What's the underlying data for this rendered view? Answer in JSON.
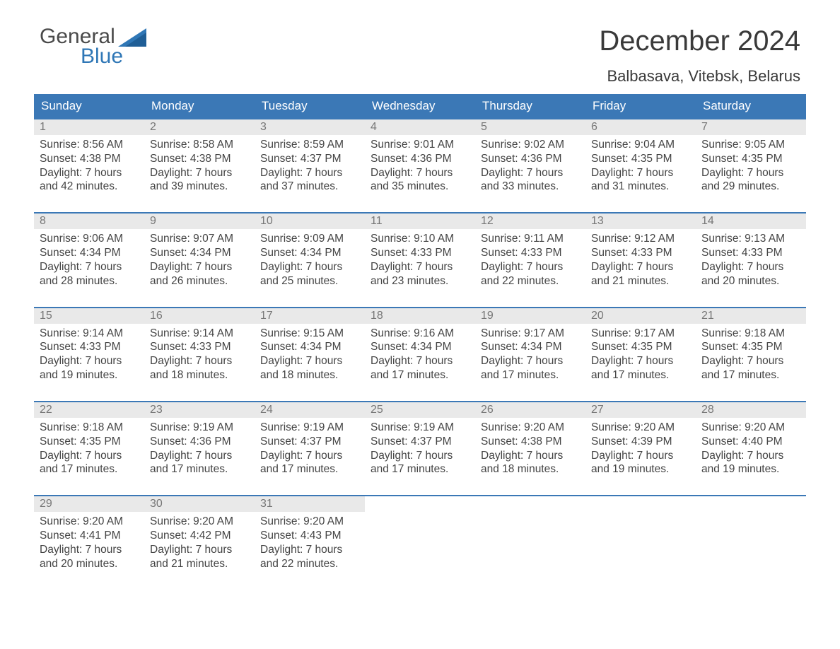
{
  "colors": {
    "header_bg": "#3b78b6",
    "header_text": "#ffffff",
    "daynum_bg": "#e9e9e9",
    "daynum_text": "#777777",
    "body_text": "#444444",
    "row_top_border": "#3b78b6",
    "logo_accent": "#2f77b6",
    "page_bg": "#ffffff"
  },
  "logo": {
    "line1": "General",
    "line2": "Blue"
  },
  "title": "December 2024",
  "location": "Balbasava, Vitebsk, Belarus",
  "columns": [
    "Sunday",
    "Monday",
    "Tuesday",
    "Wednesday",
    "Thursday",
    "Friday",
    "Saturday"
  ],
  "labels": {
    "sunrise_prefix": "Sunrise: ",
    "sunset_prefix": "Sunset: ",
    "daylight_prefix": "Daylight: ",
    "hours_word": " hours",
    "and_word": "and ",
    "minutes_suffix": " minutes."
  },
  "weeks": [
    [
      {
        "d": 1,
        "sunrise": "8:56 AM",
        "sunset": "4:38 PM",
        "dh": 7,
        "dm": 42
      },
      {
        "d": 2,
        "sunrise": "8:58 AM",
        "sunset": "4:38 PM",
        "dh": 7,
        "dm": 39
      },
      {
        "d": 3,
        "sunrise": "8:59 AM",
        "sunset": "4:37 PM",
        "dh": 7,
        "dm": 37
      },
      {
        "d": 4,
        "sunrise": "9:01 AM",
        "sunset": "4:36 PM",
        "dh": 7,
        "dm": 35
      },
      {
        "d": 5,
        "sunrise": "9:02 AM",
        "sunset": "4:36 PM",
        "dh": 7,
        "dm": 33
      },
      {
        "d": 6,
        "sunrise": "9:04 AM",
        "sunset": "4:35 PM",
        "dh": 7,
        "dm": 31
      },
      {
        "d": 7,
        "sunrise": "9:05 AM",
        "sunset": "4:35 PM",
        "dh": 7,
        "dm": 29
      }
    ],
    [
      {
        "d": 8,
        "sunrise": "9:06 AM",
        "sunset": "4:34 PM",
        "dh": 7,
        "dm": 28
      },
      {
        "d": 9,
        "sunrise": "9:07 AM",
        "sunset": "4:34 PM",
        "dh": 7,
        "dm": 26
      },
      {
        "d": 10,
        "sunrise": "9:09 AM",
        "sunset": "4:34 PM",
        "dh": 7,
        "dm": 25
      },
      {
        "d": 11,
        "sunrise": "9:10 AM",
        "sunset": "4:33 PM",
        "dh": 7,
        "dm": 23
      },
      {
        "d": 12,
        "sunrise": "9:11 AM",
        "sunset": "4:33 PM",
        "dh": 7,
        "dm": 22
      },
      {
        "d": 13,
        "sunrise": "9:12 AM",
        "sunset": "4:33 PM",
        "dh": 7,
        "dm": 21
      },
      {
        "d": 14,
        "sunrise": "9:13 AM",
        "sunset": "4:33 PM",
        "dh": 7,
        "dm": 20
      }
    ],
    [
      {
        "d": 15,
        "sunrise": "9:14 AM",
        "sunset": "4:33 PM",
        "dh": 7,
        "dm": 19
      },
      {
        "d": 16,
        "sunrise": "9:14 AM",
        "sunset": "4:33 PM",
        "dh": 7,
        "dm": 18
      },
      {
        "d": 17,
        "sunrise": "9:15 AM",
        "sunset": "4:34 PM",
        "dh": 7,
        "dm": 18
      },
      {
        "d": 18,
        "sunrise": "9:16 AM",
        "sunset": "4:34 PM",
        "dh": 7,
        "dm": 17
      },
      {
        "d": 19,
        "sunrise": "9:17 AM",
        "sunset": "4:34 PM",
        "dh": 7,
        "dm": 17
      },
      {
        "d": 20,
        "sunrise": "9:17 AM",
        "sunset": "4:35 PM",
        "dh": 7,
        "dm": 17
      },
      {
        "d": 21,
        "sunrise": "9:18 AM",
        "sunset": "4:35 PM",
        "dh": 7,
        "dm": 17
      }
    ],
    [
      {
        "d": 22,
        "sunrise": "9:18 AM",
        "sunset": "4:35 PM",
        "dh": 7,
        "dm": 17
      },
      {
        "d": 23,
        "sunrise": "9:19 AM",
        "sunset": "4:36 PM",
        "dh": 7,
        "dm": 17
      },
      {
        "d": 24,
        "sunrise": "9:19 AM",
        "sunset": "4:37 PM",
        "dh": 7,
        "dm": 17
      },
      {
        "d": 25,
        "sunrise": "9:19 AM",
        "sunset": "4:37 PM",
        "dh": 7,
        "dm": 17
      },
      {
        "d": 26,
        "sunrise": "9:20 AM",
        "sunset": "4:38 PM",
        "dh": 7,
        "dm": 18
      },
      {
        "d": 27,
        "sunrise": "9:20 AM",
        "sunset": "4:39 PM",
        "dh": 7,
        "dm": 19
      },
      {
        "d": 28,
        "sunrise": "9:20 AM",
        "sunset": "4:40 PM",
        "dh": 7,
        "dm": 19
      }
    ],
    [
      {
        "d": 29,
        "sunrise": "9:20 AM",
        "sunset": "4:41 PM",
        "dh": 7,
        "dm": 20
      },
      {
        "d": 30,
        "sunrise": "9:20 AM",
        "sunset": "4:42 PM",
        "dh": 7,
        "dm": 21
      },
      {
        "d": 31,
        "sunrise": "9:20 AM",
        "sunset": "4:43 PM",
        "dh": 7,
        "dm": 22
      },
      null,
      null,
      null,
      null
    ]
  ]
}
